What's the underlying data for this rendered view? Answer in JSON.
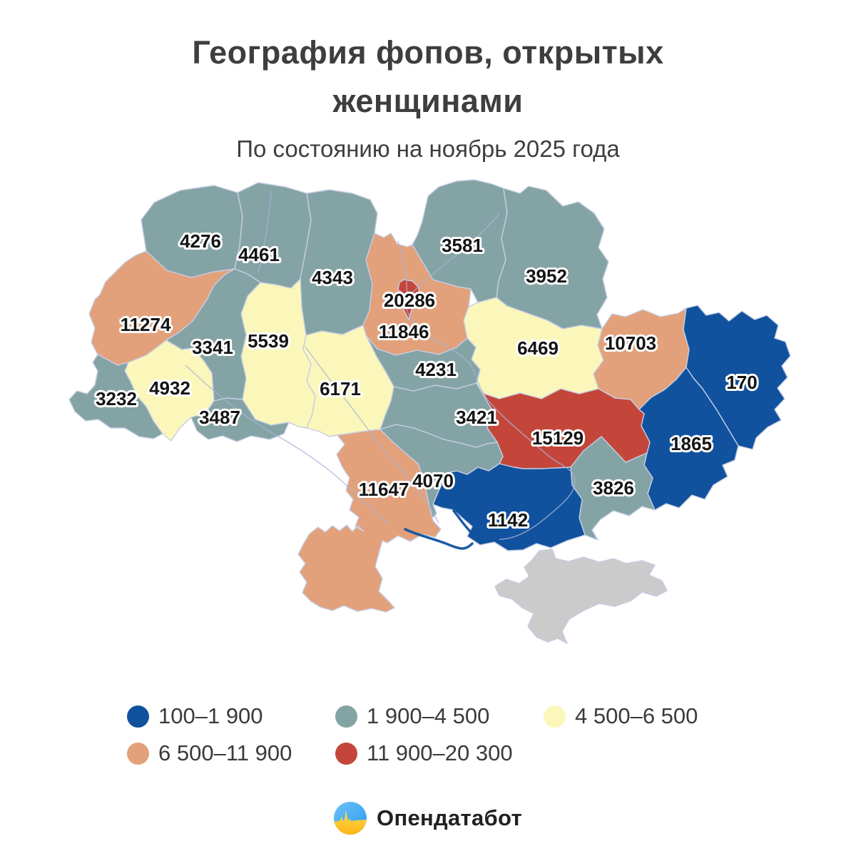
{
  "title": "География фопов, открытых женщинами",
  "subtitle": "По состоянию на ноябрь 2025 года",
  "legend": {
    "items": [
      {
        "label": "100–1 900",
        "color": "#10529E"
      },
      {
        "label": "1 900–4 500",
        "color": "#84A3A5"
      },
      {
        "label": "4 500–6 500",
        "color": "#FBF7BA"
      },
      {
        "label": "6 500–11 900",
        "color": "#E2A17B"
      },
      {
        "label": "11 900–20 300",
        "color": "#C4463A"
      }
    ]
  },
  "chart_data": {
    "type": "choropleth-map",
    "title": "География фопов, открытых женщинами",
    "subtitle": "По состоянию на ноябрь 2025 года",
    "legend_position": "bottom",
    "no_data_color": "#CBCBCB",
    "categories": [
      "100–1 900",
      "1 900–4 500",
      "4 500–6 500",
      "6 500–11 900",
      "11 900–20 300"
    ],
    "regions": [
      {
        "name": "volyn",
        "value": 4276,
        "category": 1,
        "label": [
          281,
          338
        ]
      },
      {
        "name": "rivne",
        "value": 4461,
        "category": 1,
        "label": [
          363,
          357
        ]
      },
      {
        "name": "zhytomyr",
        "value": 4343,
        "category": 1,
        "label": [
          466,
          389
        ]
      },
      {
        "name": "kyiv-oblast",
        "value": 11846,
        "category": 3,
        "label": [
          566,
          465
        ]
      },
      {
        "name": "kyiv-city",
        "value": 20286,
        "category": 4,
        "label": [
          574,
          421
        ]
      },
      {
        "name": "chernihiv",
        "value": 3581,
        "category": 1,
        "label": [
          648,
          344
        ]
      },
      {
        "name": "sumy",
        "value": 3952,
        "category": 1,
        "label": [
          766,
          387
        ]
      },
      {
        "name": "poltava",
        "value": 6469,
        "category": 2,
        "label": [
          754,
          488
        ]
      },
      {
        "name": "kharkiv",
        "value": 10703,
        "category": 3,
        "label": [
          884,
          481
        ]
      },
      {
        "name": "luhansk",
        "value": 170,
        "category": 0,
        "label": [
          1040,
          536
        ]
      },
      {
        "name": "donetsk",
        "value": 1865,
        "category": 0,
        "label": [
          969,
          622
        ]
      },
      {
        "name": "dnipropetrovsk",
        "value": 15129,
        "category": 4,
        "label": [
          782,
          614
        ]
      },
      {
        "name": "zaporizhzhia",
        "value": 3826,
        "category": 1,
        "label": [
          860,
          684
        ]
      },
      {
        "name": "kherson",
        "value": 1142,
        "category": 0,
        "label": [
          712,
          729
        ]
      },
      {
        "name": "mykolaiv",
        "value": 4070,
        "category": 1,
        "label": [
          607,
          674
        ]
      },
      {
        "name": "odesa",
        "value": 11647,
        "category": 3,
        "label": [
          538,
          686
        ]
      },
      {
        "name": "kirovohrad",
        "value": 3421,
        "category": 1,
        "label": [
          668,
          585
        ]
      },
      {
        "name": "cherkasy",
        "value": 4231,
        "category": 1,
        "label": [
          611,
          518
        ]
      },
      {
        "name": "vinnytsia",
        "value": 6171,
        "category": 2,
        "label": [
          477,
          545
        ]
      },
      {
        "name": "khmelnytskyi",
        "value": 5539,
        "category": 2,
        "label": [
          376,
          478
        ]
      },
      {
        "name": "ternopil",
        "value": 3341,
        "category": 1,
        "label": [
          298,
          487
        ]
      },
      {
        "name": "lviv",
        "value": 11274,
        "category": 3,
        "label": [
          204,
          455
        ]
      },
      {
        "name": "ivano-frankivsk",
        "value": 4932,
        "category": 2,
        "label": [
          238,
          544
        ]
      },
      {
        "name": "zakarpattia",
        "value": 3232,
        "category": 1,
        "label": [
          163,
          559
        ]
      },
      {
        "name": "chernivtsi",
        "value": 3487,
        "category": 1,
        "label": [
          308,
          585
        ]
      }
    ],
    "no_data_regions": [
      {
        "name": "crimea"
      }
    ]
  },
  "footer": {
    "logo_text": "Опендатабот"
  }
}
